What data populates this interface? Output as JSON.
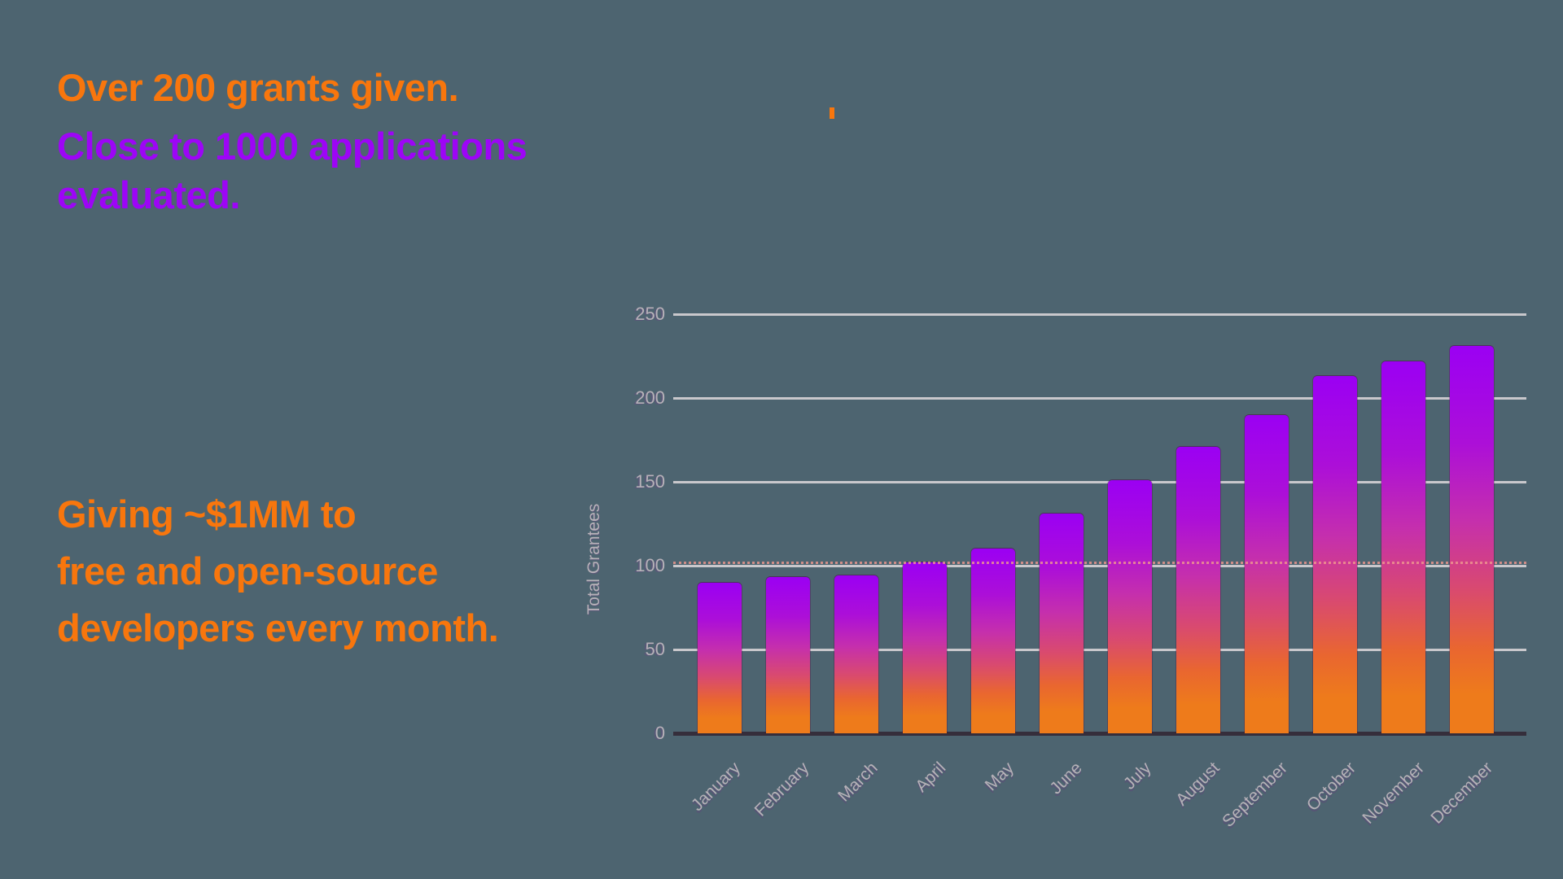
{
  "theme": {
    "background": "#4D6470",
    "orange": "#F8760D",
    "purple": "#9D05F6",
    "axis_text": "#B6B1B8",
    "gridline": "#C9C8CC",
    "axis_line": "#352E3B",
    "reference_line_color": "#F0998F"
  },
  "headline": {
    "grants": "Over 200 grants given.",
    "applications": "Close to 1000 applications\nevaluated."
  },
  "footline": {
    "lines": [
      "Giving ~$1MM to",
      "free and open-source",
      "developers every month."
    ]
  },
  "chart_data": {
    "type": "bar",
    "title": "",
    "xlabel": "",
    "ylabel": "Total Grantees",
    "categories": [
      "January",
      "February",
      "March",
      "April",
      "May",
      "June",
      "July",
      "August",
      "September",
      "October",
      "November",
      "December"
    ],
    "values": [
      90,
      93,
      94,
      102,
      110,
      131,
      151,
      171,
      190,
      213,
      222,
      231
    ],
    "ylim": [
      0,
      250
    ],
    "yticks": [
      0,
      50,
      100,
      150,
      200,
      250
    ],
    "grid": true,
    "legend": false,
    "reference_line": {
      "value": 100,
      "style": "dotted"
    },
    "bar_gradient": [
      {
        "color": "#9B00F3",
        "pos": 0
      },
      {
        "color": "#AC0FD8",
        "pos": 25
      },
      {
        "color": "#C52FAD",
        "pos": 45
      },
      {
        "color": "#D94A6F",
        "pos": 63
      },
      {
        "color": "#E96630",
        "pos": 78
      },
      {
        "color": "#EE7B1B",
        "pos": 90
      }
    ]
  }
}
